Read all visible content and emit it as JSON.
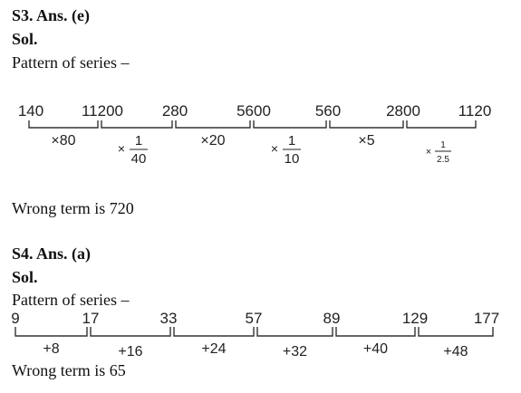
{
  "s3": {
    "heading": "S3. Ans. (e)",
    "sol": "Sol.",
    "pattern": "Pattern of series –",
    "terms": [
      "140",
      "11200",
      "280",
      "5600",
      "560",
      "2800",
      "1120"
    ],
    "ops": [
      {
        "type": "text",
        "text": "×80"
      },
      {
        "type": "frac",
        "sign": "×",
        "num": "1",
        "den": "40"
      },
      {
        "type": "text",
        "text": "×20"
      },
      {
        "type": "frac",
        "sign": "×",
        "num": "1",
        "den": "10"
      },
      {
        "type": "text",
        "text": "×5"
      },
      {
        "type": "frac",
        "sign": "×",
        "num": "1",
        "den": "2.5"
      }
    ],
    "wrong": "Wrong term is 720"
  },
  "s4": {
    "heading": "S4. Ans. (a)",
    "sol": "Sol.",
    "pattern": "Pattern of series –",
    "terms": [
      "9",
      "17",
      "33",
      "57",
      "89",
      "129",
      "177"
    ],
    "ops": [
      {
        "type": "text",
        "text": "+8"
      },
      {
        "type": "text",
        "text": "+16"
      },
      {
        "type": "text",
        "text": "+24"
      },
      {
        "type": "text",
        "text": "+32"
      },
      {
        "type": "text",
        "text": "+40"
      },
      {
        "type": "text",
        "text": "+48"
      }
    ],
    "wrong": "Wrong term is 65"
  }
}
